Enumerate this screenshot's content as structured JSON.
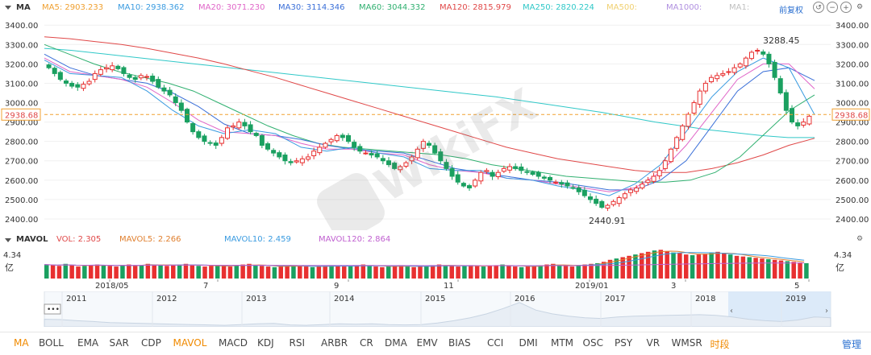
{
  "header": {
    "title": "MA",
    "ma": [
      {
        "label": "MA5: 2903.233",
        "color": "#f0a030"
      },
      {
        "label": "MA10: 2938.362",
        "color": "#3a9be0"
      },
      {
        "label": "MA20: 3071.230",
        "color": "#e066c8"
      },
      {
        "label": "MA30: 3114.346",
        "color": "#3a6fd8"
      },
      {
        "label": "MA60: 3044.332",
        "color": "#30b070"
      },
      {
        "label": "MA120: 2815.979",
        "color": "#e04848"
      },
      {
        "label": "MA250: 2820.224",
        "color": "#30c8c8"
      },
      {
        "label": "MA500:",
        "color": "#f0d070"
      },
      {
        "label": "MA1000:",
        "color": "#b090e0"
      },
      {
        "label": "MA1:",
        "color": "#c0c0c0"
      }
    ],
    "adjust": "前复权"
  },
  "chart_data": [
    {
      "type": "line",
      "name": "price",
      "yticks": [
        3400,
        3300,
        3200,
        3100,
        3000,
        2900,
        2800,
        2700,
        2600,
        2500,
        2400
      ],
      "ytick_labels": [
        "3400.00",
        "3300.00",
        "3200.00",
        "3100.00",
        "3000.00",
        "2900.00",
        "2800.00",
        "2700.00",
        "2600.00",
        "2500.00",
        "2400.00"
      ],
      "ylim": [
        2350,
        3430
      ],
      "current": 2938.68,
      "current_label": "2938.68",
      "annotations": [
        {
          "label": "3288.45",
          "value": 3288.45
        },
        {
          "label": "2440.91",
          "value": 2440.91
        }
      ],
      "xlabels": [
        "2018/05",
        "7",
        "9",
        "11",
        "2019/01",
        "3",
        "5"
      ],
      "candles_close": [
        3180,
        3150,
        3120,
        3100,
        3085,
        3080,
        3095,
        3110,
        3150,
        3170,
        3180,
        3190,
        3175,
        3150,
        3130,
        3120,
        3140,
        3135,
        3110,
        3080,
        3060,
        3040,
        3000,
        2960,
        2900,
        2850,
        2820,
        2800,
        2790,
        2780,
        2820,
        2870,
        2880,
        2900,
        2880,
        2850,
        2830,
        2780,
        2760,
        2740,
        2720,
        2700,
        2690,
        2700,
        2710,
        2720,
        2750,
        2770,
        2790,
        2810,
        2830,
        2820,
        2800,
        2770,
        2750,
        2740,
        2730,
        2720,
        2700,
        2680,
        2660,
        2670,
        2690,
        2720,
        2760,
        2800,
        2780,
        2740,
        2700,
        2660,
        2620,
        2590,
        2570,
        2560,
        2600,
        2640,
        2650,
        2620,
        2640,
        2660,
        2670,
        2660,
        2650,
        2640,
        2630,
        2620,
        2610,
        2600,
        2590,
        2580,
        2570,
        2560,
        2540,
        2520,
        2500,
        2480,
        2460,
        2470,
        2490,
        2510,
        2530,
        2550,
        2560,
        2580,
        2600,
        2620,
        2650,
        2700,
        2760,
        2820,
        2880,
        2940,
        3000,
        3060,
        3100,
        3130,
        3140,
        3150,
        3160,
        3180,
        3200,
        3230,
        3260,
        3270,
        3250,
        3200,
        3130,
        3050,
        2960,
        2900,
        2880,
        2900,
        2930
      ],
      "series": [
        {
          "name": "MA250",
          "values": [
            3280,
            3270,
            3255,
            3240,
            3225,
            3210,
            3195,
            3180,
            3165,
            3150,
            3135,
            3120,
            3105,
            3090,
            3075,
            3060,
            3045,
            3030,
            3010,
            2990,
            2970,
            2950,
            2925,
            2900,
            2880,
            2860,
            2845,
            2830,
            2820,
            2820
          ]
        },
        {
          "name": "MA120",
          "values": [
            3340,
            3330,
            3315,
            3300,
            3280,
            3255,
            3230,
            3200,
            3165,
            3130,
            3090,
            3050,
            3010,
            2970,
            2930,
            2890,
            2850,
            2810,
            2770,
            2740,
            2710,
            2690,
            2670,
            2650,
            2640,
            2640,
            2660,
            2690,
            2730,
            2780,
            2816
          ]
        },
        {
          "name": "MA60",
          "values": [
            3300,
            3250,
            3200,
            3160,
            3130,
            3100,
            3060,
            3000,
            2940,
            2880,
            2830,
            2790,
            2770,
            2760,
            2750,
            2740,
            2730,
            2710,
            2680,
            2660,
            2640,
            2620,
            2610,
            2600,
            2590,
            2590,
            2600,
            2640,
            2720,
            2840,
            2960,
            3040
          ]
        },
        {
          "name": "MA30",
          "values": [
            3250,
            3180,
            3140,
            3120,
            3100,
            3050,
            2980,
            2890,
            2840,
            2830,
            2810,
            2780,
            2760,
            2750,
            2740,
            2700,
            2660,
            2640,
            2620,
            2600,
            2590,
            2570,
            2550,
            2550,
            2600,
            2700,
            2880,
            3060,
            3160,
            3180,
            3114
          ]
        },
        {
          "name": "MA20",
          "values": [
            3230,
            3160,
            3140,
            3120,
            3080,
            3000,
            2910,
            2850,
            2840,
            2830,
            2790,
            2760,
            2760,
            2740,
            2730,
            2680,
            2650,
            2640,
            2610,
            2600,
            2580,
            2560,
            2540,
            2560,
            2640,
            2780,
            2950,
            3120,
            3200,
            3200,
            3071
          ]
        },
        {
          "name": "MA10",
          "values": [
            3220,
            3150,
            3140,
            3130,
            3060,
            2960,
            2880,
            2840,
            2860,
            2840,
            2770,
            2750,
            2770,
            2740,
            2720,
            2660,
            2650,
            2650,
            2610,
            2600,
            2570,
            2550,
            2520,
            2580,
            2680,
            2850,
            3030,
            3160,
            3230,
            3180,
            2938
          ]
        }
      ]
    },
    {
      "type": "bar",
      "name": "MAVOL",
      "labels": {
        "vol": "VOL: 2.305",
        "mavol5": "MAVOL5: 2.266",
        "mavol10": "MAVOL10: 2.459",
        "mavol120": "MAVOL120: 2.864"
      },
      "ytop_label": "4.34",
      "yunit": "亿",
      "values": [
        2.1,
        2.0,
        1.9,
        2.2,
        2.0,
        1.8,
        1.9,
        2.0,
        2.1,
        2.0,
        1.9,
        1.8,
        2.0,
        2.1,
        1.9,
        2.0,
        2.2,
        2.1,
        2.0,
        1.9,
        2.0,
        2.1,
        2.2,
        2.0,
        1.9,
        1.8,
        1.9,
        2.0,
        1.9,
        1.8,
        2.0,
        2.1,
        2.2,
        2.0,
        1.9,
        1.8,
        1.7,
        1.8,
        1.9,
        2.0,
        1.9,
        1.8,
        1.7,
        1.8,
        1.9,
        2.0,
        1.9,
        1.8,
        1.9,
        2.0,
        2.1,
        1.9,
        1.8,
        1.7,
        1.8,
        1.9,
        2.0,
        1.8,
        1.7,
        1.8,
        1.9,
        2.0,
        2.1,
        2.0,
        1.9,
        1.8,
        1.9,
        2.0,
        1.9,
        1.8,
        1.9,
        2.0,
        2.1,
        1.9,
        1.8,
        1.7,
        1.8,
        1.9,
        2.0,
        2.1,
        2.2,
        2.0,
        1.9,
        1.8,
        2.0,
        2.1,
        2.2,
        2.3,
        2.5,
        2.8,
        3.0,
        3.2,
        3.4,
        3.6,
        3.8,
        4.0,
        4.2,
        4.3,
        4.1,
        3.9,
        3.8,
        3.6,
        3.5,
        3.6,
        3.7,
        3.9,
        4.0,
        3.8,
        3.6,
        3.4,
        3.3,
        3.2,
        3.1,
        3.0,
        2.9,
        2.8,
        2.7,
        2.6,
        2.5,
        2.4,
        2.3
      ],
      "mavol_series": [
        {
          "name": "MAVOL5",
          "color": "#e08030"
        },
        {
          "name": "MAVOL10",
          "color": "#3a9be0"
        },
        {
          "name": "MAVOL120",
          "color": "#c060d0"
        }
      ]
    },
    {
      "type": "area",
      "name": "navigator",
      "years": [
        "2011",
        "2012",
        "2013",
        "2014",
        "2015",
        "2016",
        "2017",
        "2018",
        "2019"
      ],
      "values": [
        2800,
        2750,
        2600,
        2500,
        2350,
        2300,
        2250,
        2200,
        2150,
        2100,
        2050,
        2000,
        2100,
        2200,
        2250,
        2050,
        2000,
        2100,
        2200,
        2150,
        2200,
        2100,
        2050,
        2100,
        2300,
        2600,
        3000,
        3500,
        4200,
        5000,
        4000,
        3500,
        3200,
        3000,
        2900,
        3100,
        3200,
        3250,
        3300,
        3350,
        3400,
        3300,
        3100,
        2800,
        2600,
        2500,
        2700,
        3100,
        3000
      ]
    }
  ],
  "volume_header": {
    "title": "MAVOL"
  },
  "indicators": [
    "MA",
    "BOLL",
    "EMA",
    "SAR",
    "CDP",
    "MAVOL",
    "MACD",
    "KDJ",
    "RSI",
    "ARBR",
    "CR",
    "DMA",
    "EMV",
    "BIAS",
    "CCI",
    "DMI",
    "MTM",
    "OSC",
    "PSY",
    "VR",
    "WMSR",
    "时段"
  ],
  "manage": "管理",
  "watermark": "WikiFX",
  "colors": {
    "up": "#e83030",
    "down": "#1aa060",
    "ma_title": "#e8a000",
    "active_indicator": "#f08a00",
    "dashed": "#f0a030"
  }
}
